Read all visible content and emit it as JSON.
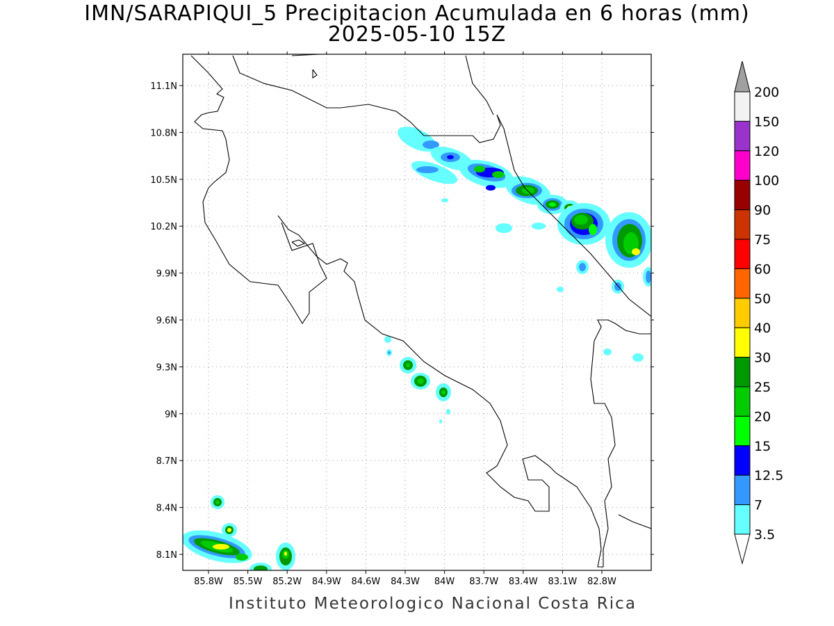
{
  "title_line1": "IMN/SARAPIQUI_5 Precipitacion Acumulada en 6 horas (mm)",
  "title_line2": "2025-05-10 15Z",
  "footer": "Instituto Meteorologico Nacional Costa Rica",
  "map": {
    "lon_range": [
      -86.0,
      -83.0
    ],
    "lat_range": [
      8.0,
      11.3
    ],
    "x_ticks": [
      {
        "lon": -85.8,
        "label": "85.8W"
      },
      {
        "lon": -85.5,
        "label": "85.5W"
      },
      {
        "lon": -85.2,
        "label": "85.2W"
      },
      {
        "lon": -84.9,
        "label": "84.9W"
      },
      {
        "lon": -84.6,
        "label": "84.6W"
      },
      {
        "lon": -84.3,
        "label": "84.3W"
      },
      {
        "lon": -84.0,
        "label": "84W"
      },
      {
        "lon": -83.7,
        "label": "83.7W"
      },
      {
        "lon": -83.4,
        "label": "83.4W"
      },
      {
        "lon": -83.1,
        "label": "83.1W"
      },
      {
        "lon": -82.8,
        "label": "82.8W"
      }
    ],
    "y_ticks": [
      {
        "lat": 11.1,
        "label": "11.1N"
      },
      {
        "lat": 10.8,
        "label": "10.8N"
      },
      {
        "lat": 10.5,
        "label": "10.5N"
      },
      {
        "lat": 10.2,
        "label": "10.2N"
      },
      {
        "lat": 9.9,
        "label": "9.9N"
      },
      {
        "lat": 9.6,
        "label": "9.6N"
      },
      {
        "lat": 9.3,
        "label": "9.3N"
      },
      {
        "lat": 9.0,
        "label": "9N"
      },
      {
        "lat": 8.7,
        "label": "8.7N"
      },
      {
        "lat": 8.4,
        "label": "8.4N"
      },
      {
        "lat": 8.1,
        "label": "8.1N"
      }
    ],
    "grid": "dotted",
    "legend_placement": "right"
  },
  "colorbar": {
    "labels": [
      "3.5",
      "7",
      "12.5",
      "15",
      "20",
      "25",
      "30",
      "40",
      "50",
      "60",
      "75",
      "90",
      "100",
      "120",
      "150",
      "200"
    ],
    "colors": [
      "#66ffff",
      "#3399ff",
      "#0000ff",
      "#00ff00",
      "#00cc00",
      "#009900",
      "#ffff00",
      "#ffcc00",
      "#ff6600",
      "#ff0000",
      "#cc3300",
      "#990000",
      "#ff00cc",
      "#9933cc",
      "#f2f2f2"
    ],
    "upper_arrow_color": "#a0a0a0",
    "lower_arrow_color": "#ffffff"
  }
}
